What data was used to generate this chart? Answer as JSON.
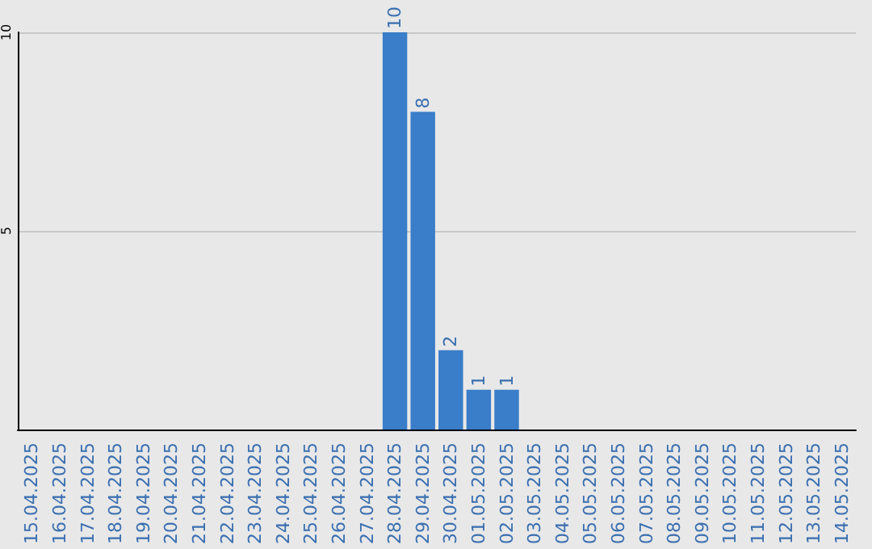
{
  "chart_data": {
    "type": "bar",
    "categories": [
      "15.04.2025",
      "16.04.2025",
      "17.04.2025",
      "18.04.2025",
      "19.04.2025",
      "20.04.2025",
      "21.04.2025",
      "22.04.2025",
      "23.04.2025",
      "24.04.2025",
      "25.04.2025",
      "26.04.2025",
      "27.04.2025",
      "28.04.2025",
      "29.04.2025",
      "30.04.2025",
      "01.05.2025",
      "02.05.2025",
      "03.05.2025",
      "04.05.2025",
      "05.05.2025",
      "06.05.2025",
      "07.05.2025",
      "08.05.2025",
      "09.05.2025",
      "10.05.2025",
      "11.05.2025",
      "12.05.2025",
      "13.05.2025",
      "14.05.2025"
    ],
    "values": [
      0,
      0,
      0,
      0,
      0,
      0,
      0,
      0,
      0,
      0,
      0,
      0,
      0,
      10,
      8,
      2,
      1,
      1,
      0,
      0,
      0,
      0,
      0,
      0,
      0,
      0,
      0,
      0,
      0,
      0
    ],
    "value_labels": [
      null,
      null,
      null,
      null,
      null,
      null,
      null,
      null,
      null,
      null,
      null,
      null,
      null,
      "10",
      "8",
      "2",
      "1",
      "1",
      null,
      null,
      null,
      null,
      null,
      null,
      null,
      null,
      null,
      null,
      null,
      null
    ],
    "color": "#3a7dc9",
    "ylim": [
      0,
      10
    ],
    "yticks": [
      5,
      10
    ],
    "grid": "y"
  }
}
